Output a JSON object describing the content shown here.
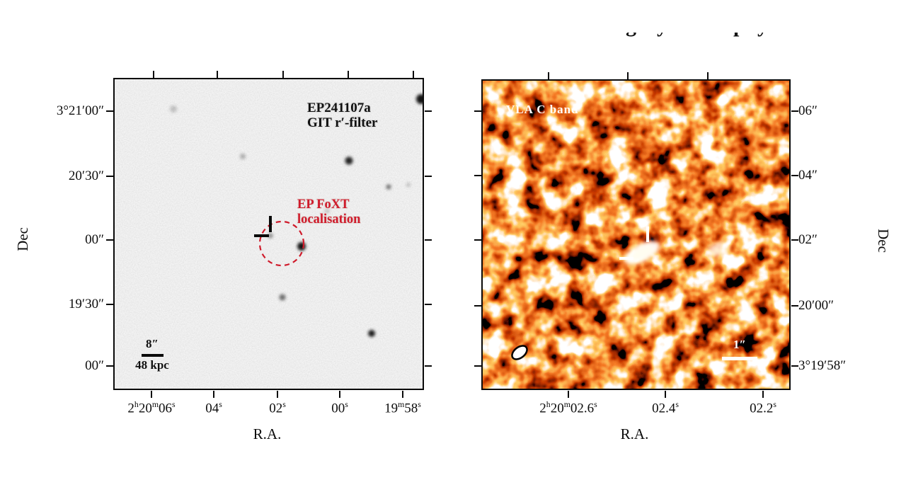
{
  "cropped_header": {
    "fragments": [
      "g",
      "y",
      "p",
      "y"
    ]
  },
  "left_panel": {
    "title_line1": "EP241107a",
    "title_line2": "GIT r′-filter",
    "localisation_line1": "EP FoXT",
    "localisation_line2": "localisation",
    "scalebar": {
      "angular": "8″",
      "physical": "48 kpc"
    },
    "x_axis": {
      "title": "R.A.",
      "ticks": [
        "2h20m06s",
        "04s",
        "02s",
        "00s",
        "19m58s"
      ]
    },
    "y_axis": {
      "title": "Dec",
      "ticks": [
        "3°21′00″",
        "20′30″",
        "00″",
        "19′30″",
        "00″"
      ]
    },
    "annotation_color": "#cf1b2b",
    "background_color": "#d8d8d8"
  },
  "right_panel": {
    "instrument_label": "VLA C band",
    "scalebar": {
      "angular": "1″"
    },
    "x_axis": {
      "title": "R.A.",
      "ticks": [
        "2h20m02.6s",
        "02.4s",
        "02.2s"
      ]
    },
    "y_axis": {
      "title": "Dec",
      "ticks": [
        "06″",
        "04″",
        "02″",
        "20′00″",
        "3°19′58″"
      ]
    },
    "colormap": "hot",
    "label_color": "#ffffff"
  }
}
